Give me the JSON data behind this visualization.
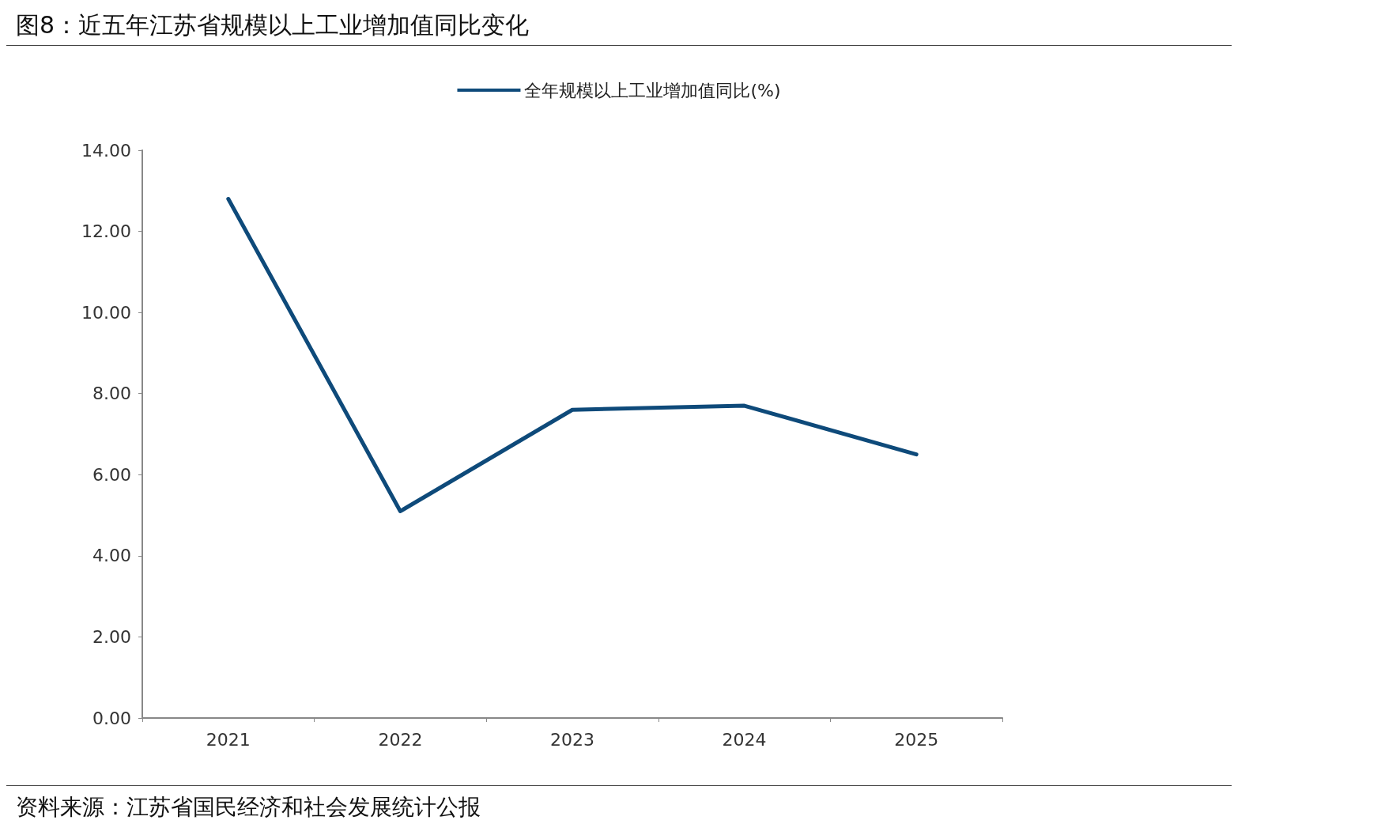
{
  "chart_data": {
    "type": "line",
    "title": "图8：近五年江苏省规模以上工业增加值同比变化",
    "categories": [
      "2021",
      "2022",
      "2023",
      "2024",
      "2025"
    ],
    "series": [
      {
        "name": "全年规模以上工业增加值同比(%)",
        "color": "#0e4a7a",
        "values": [
          12.8,
          5.1,
          7.6,
          7.7,
          6.5
        ]
      }
    ],
    "ylim": [
      0,
      14
    ],
    "yticks": [
      {
        "value": 0,
        "label": "0.00"
      },
      {
        "value": 2,
        "label": "2.00"
      },
      {
        "value": 4,
        "label": "4.00"
      },
      {
        "value": 6,
        "label": "6.00"
      },
      {
        "value": 8,
        "label": "8.00"
      },
      {
        "value": 10,
        "label": "10.00"
      },
      {
        "value": 12,
        "label": "12.00"
      },
      {
        "value": 14,
        "label": "14.00"
      }
    ],
    "grid": false,
    "legend": "top",
    "marker": "none",
    "line_style": "solid",
    "annotations": [
      "资料来源：江苏省国民经济和社会发展统计公报"
    ]
  }
}
